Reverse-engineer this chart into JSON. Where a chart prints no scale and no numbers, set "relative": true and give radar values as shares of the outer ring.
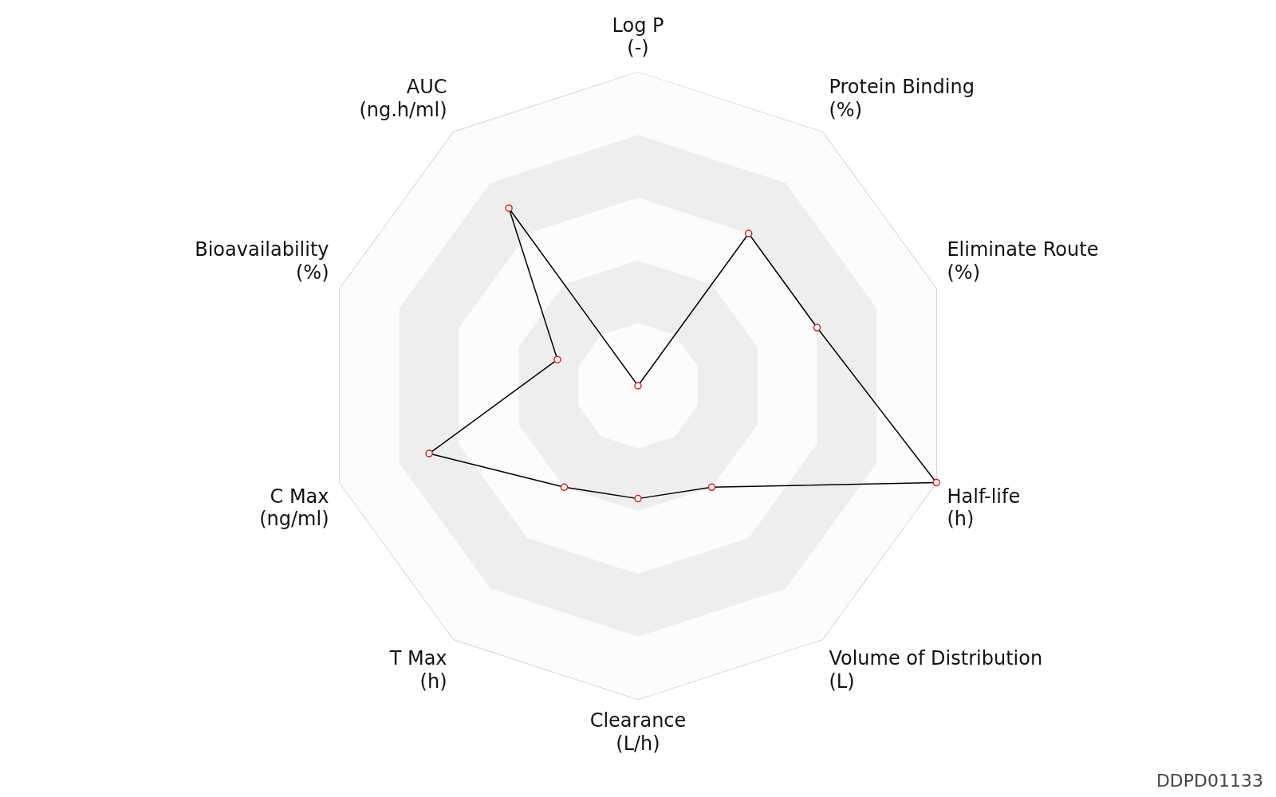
{
  "chart_data": {
    "type": "radar",
    "relative": true,
    "categories": [
      "Log P\n(-)",
      "Protein Binding\n(%)",
      "Eliminate Route\n(%)",
      "Half-life\n(h)",
      "Volume of Distribution\n(L)",
      "Clearance\n(L/h)",
      "T Max\n(h)",
      "C Max\n(ng/ml)",
      "Bioavailability\n(%)",
      "AUC\n(ng.h/ml)"
    ],
    "series": [
      {
        "color": "#000000",
        "values": [
          0,
          0.6,
          0.6,
          1.0,
          0.4,
          0.36,
          0.4,
          0.7,
          0.27,
          0.7
        ]
      }
    ],
    "marker": "circle",
    "legend": false,
    "annotations": [
      "DDPD01133"
    ]
  }
}
